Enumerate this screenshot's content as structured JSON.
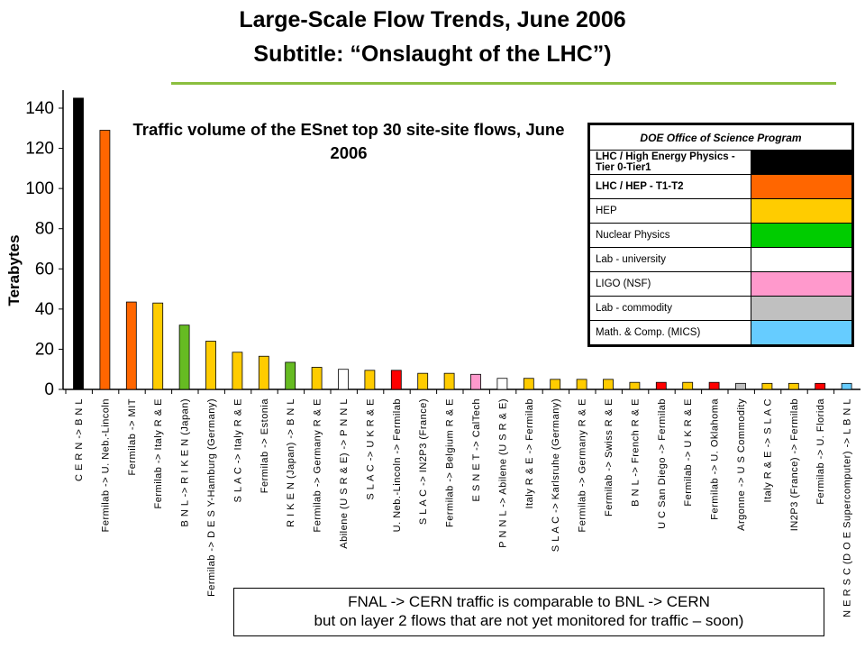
{
  "header": {
    "title": "Large-Scale Flow Trends, June 2006",
    "subtitle": "Subtitle: “Onslaught of the LHC”)"
  },
  "chart_data": {
    "type": "bar",
    "title": "Traffic volume of the ESnet top 30 site-site flows, June 2006",
    "xlabel": "",
    "ylabel": "Terabytes",
    "ylim": [
      0,
      150
    ],
    "yticks": [
      0,
      20,
      40,
      60,
      80,
      100,
      120,
      140
    ],
    "grid": false,
    "legend_position": "top-right",
    "categories": [
      "C E R N  ->  B N L",
      "Fermilab -> U. Neb.-Lincoln",
      "Fermilab -> MIT",
      "Fermilab -> Italy R & E",
      "B N L  ->  R I K E N  (Japan)",
      "Fermilab -> D E S Y-Hamburg (Germany)",
      "S L A C  ->  Italy R & E",
      "Fermilab -> Estonia",
      "R I K E N  (Japan) -> B N L",
      "Fermilab -> Germany R & E",
      "Abilene (U S R & E) -> P N N L",
      "S L A C  ->  U K  R & E",
      "U. Neb.-Lincoln -> Fermilab",
      "S L A C  ->  IN2P3 (France)",
      "Fermilab -> Belgium R & E",
      "E S N E T  ->  CalTech",
      "P N N L -> Abilene (U S R & E)",
      "Italy R & E -> Fermilab",
      "S L A C  ->  Karlsruhe (Germany)",
      "Fermilab -> Germany R & E",
      "Fermilab -> Swiss R & E",
      "B N L  ->  French R & E",
      "U C San Diego -> Fermilab",
      "Fermilab -> U K  R & E",
      "Fermilab -> U. Oklahoma",
      "Argonne -> U S Commodity",
      "Italy R & E -> S L A C",
      "IN2P3 (France) -> Fermilab",
      "Fermilab -> U. Florida",
      "N E R S C  (D O E  Supercomputer) -> L B N L"
    ],
    "values": [
      145,
      129,
      43.5,
      43,
      32,
      24,
      18.5,
      16.5,
      13.5,
      11,
      10,
      9.5,
      9.5,
      8,
      8,
      7.5,
      5.5,
      5.5,
      5,
      5,
      5,
      3.5,
      3.5,
      3.5,
      3.5,
      3,
      3,
      3,
      3,
      3
    ],
    "colors": [
      "#000000",
      "#ff6600",
      "#ff6600",
      "#ffcc00",
      "#66bb22",
      "#ffcc00",
      "#ffcc00",
      "#ffcc00",
      "#66bb22",
      "#ffcc00",
      "#ffffff",
      "#ffcc00",
      "#ff0000",
      "#ffcc00",
      "#ffcc00",
      "#ff99cc",
      "#ffffff",
      "#ffcc00",
      "#ffcc00",
      "#ffcc00",
      "#ffcc00",
      "#ffcc00",
      "#ff0000",
      "#ffcc00",
      "#ff0000",
      "#c0c0c0",
      "#ffcc00",
      "#ffcc00",
      "#ff0000",
      "#66ccff"
    ]
  },
  "legend": {
    "header": "DOE Office of Science Program",
    "entries": [
      {
        "label": "LHC / High Energy Physics  - Tier 0-Tier1",
        "color": "#000000"
      },
      {
        "label": "LHC / HEP - T1-T2",
        "color": "#ff6600"
      },
      {
        "label": "HEP",
        "color": "#ffcc00"
      },
      {
        "label": "Nuclear Physics",
        "color": "#00cc00"
      },
      {
        "label": "Lab - university",
        "color": "#ffffff"
      },
      {
        "label": "LIGO (NSF)",
        "color": "#ff99cc"
      },
      {
        "label": "Lab - commodity",
        "color": "#c0c0c0"
      },
      {
        "label": "Math. & Comp. (MICS)",
        "color": "#66ccff"
      }
    ]
  },
  "note": {
    "line1": "FNAL -> CERN traffic is comparable to BNL -> CERN",
    "line2": "but on layer 2 flows that are not yet monitored for traffic – soon)"
  },
  "colors": {
    "rule": "#8bbf3f"
  }
}
